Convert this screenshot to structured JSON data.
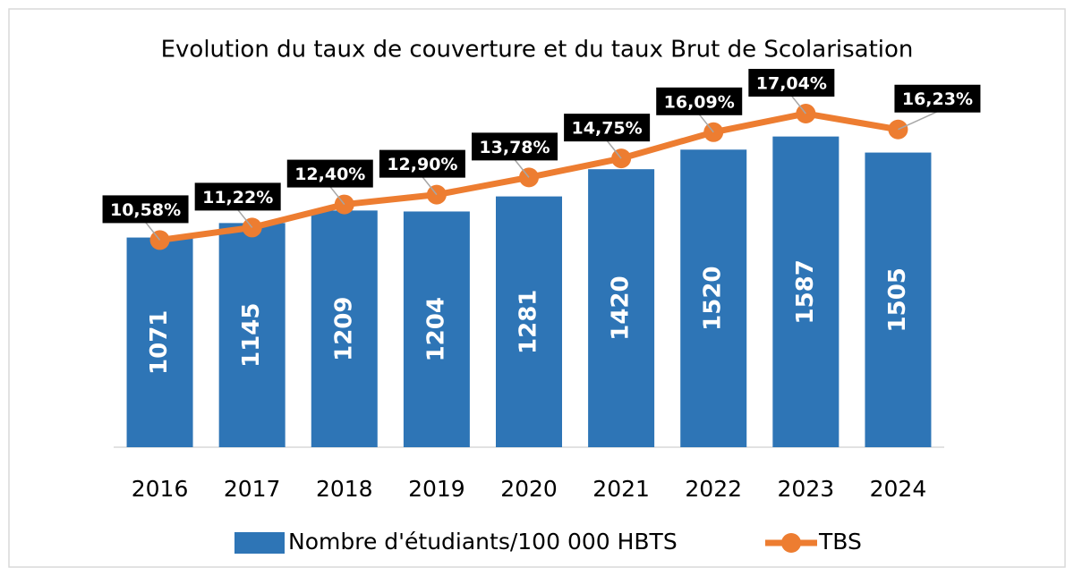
{
  "chart_data": {
    "type": "combo",
    "title": "Evolution du taux de couverture et du taux Brut de Scolarisation",
    "categories": [
      "2016",
      "2017",
      "2018",
      "2019",
      "2020",
      "2021",
      "2022",
      "2023",
      "2024"
    ],
    "ylim": [
      0,
      1800
    ],
    "y2lim": [
      0,
      18
    ],
    "series": [
      {
        "name": "Nombre d'étudiants/100 000 HBTS",
        "type": "bar",
        "color": "#2e75b6",
        "values": [
          1071,
          1145,
          1209,
          1204,
          1281,
          1420,
          1520,
          1587,
          1505
        ]
      },
      {
        "name": "TBS",
        "type": "line",
        "axis": "y2",
        "color": "#ed7d31",
        "values": [
          10.58,
          11.22,
          12.4,
          12.9,
          13.78,
          14.75,
          16.09,
          17.04,
          16.23
        ],
        "value_labels": [
          "10,58%",
          "11,22%",
          "12,40%",
          "12,90%",
          "13,78%",
          "14,75%",
          "16,09%",
          "17,04%",
          "16,23%"
        ]
      }
    ],
    "legend": "bottom"
  }
}
